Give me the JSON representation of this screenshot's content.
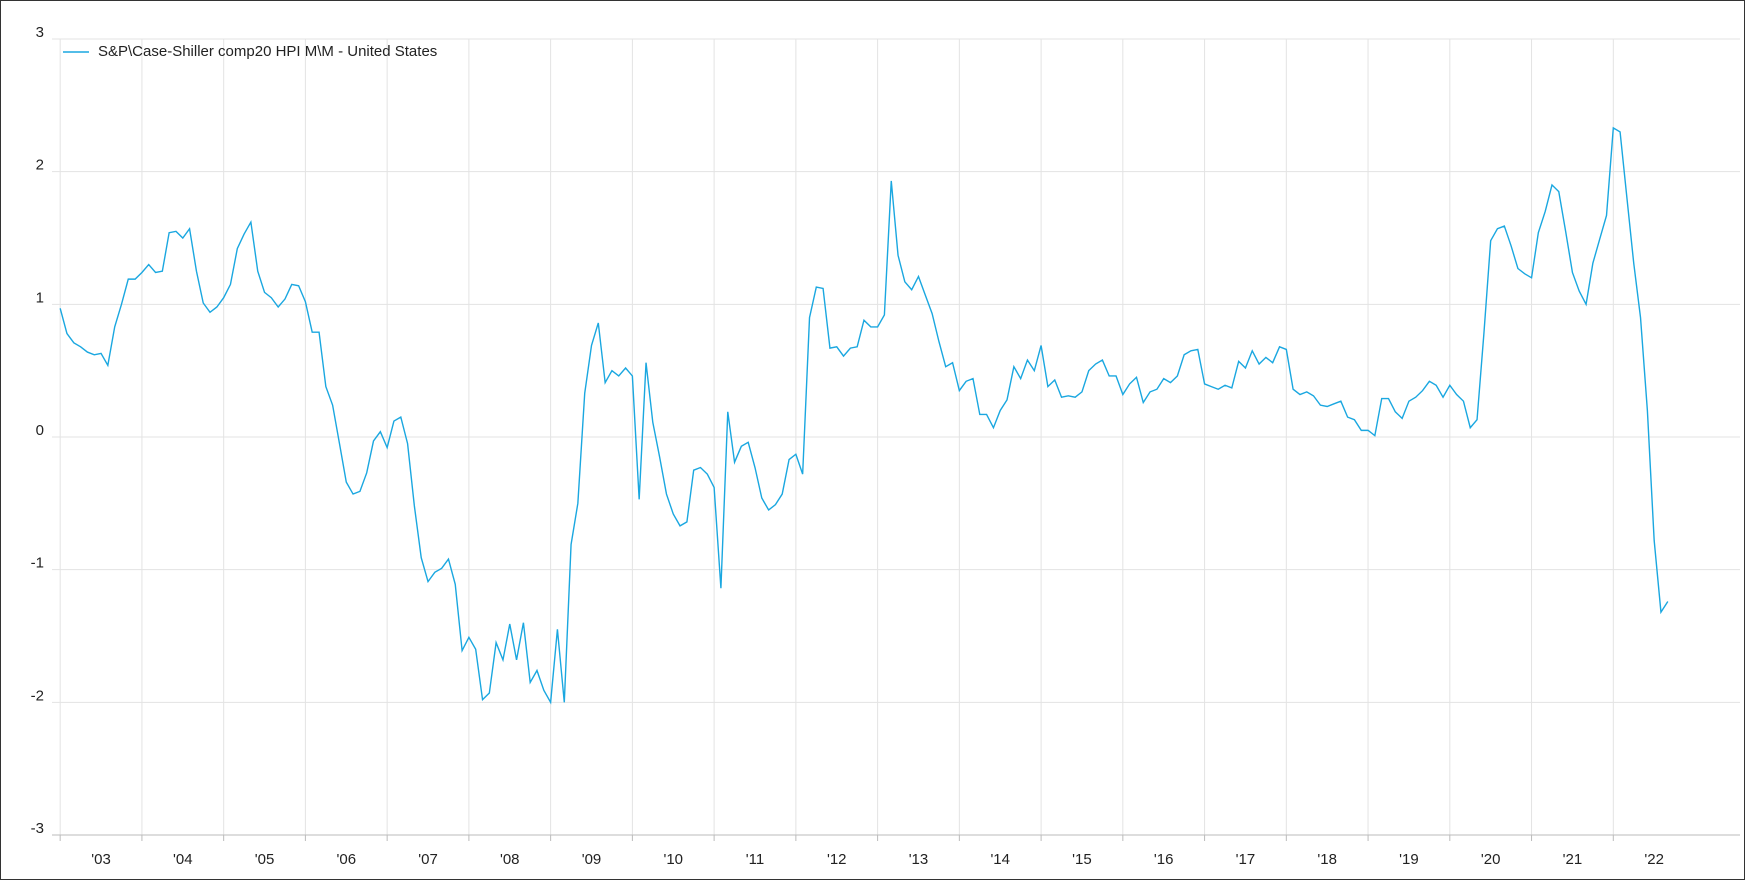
{
  "chart_data": {
    "type": "line",
    "x": [
      2003,
      2003.083,
      2003.167,
      2003.25,
      2003.333,
      2003.417,
      2003.5,
      2003.583,
      2003.667,
      2003.75,
      2003.833,
      2003.917,
      2004,
      2004.083,
      2004.167,
      2004.25,
      2004.333,
      2004.417,
      2004.5,
      2004.583,
      2004.667,
      2004.75,
      2004.833,
      2004.917,
      2005,
      2005.083,
      2005.167,
      2005.25,
      2005.333,
      2005.417,
      2005.5,
      2005.583,
      2005.667,
      2005.75,
      2005.833,
      2005.917,
      2006,
      2006.083,
      2006.167,
      2006.25,
      2006.333,
      2006.417,
      2006.5,
      2006.583,
      2006.667,
      2006.75,
      2006.833,
      2006.917,
      2007,
      2007.083,
      2007.167,
      2007.25,
      2007.333,
      2007.417,
      2007.5,
      2007.583,
      2007.667,
      2007.75,
      2007.833,
      2007.917,
      2008,
      2008.083,
      2008.167,
      2008.25,
      2008.333,
      2008.417,
      2008.5,
      2008.583,
      2008.667,
      2008.75,
      2008.833,
      2008.917,
      2009,
      2009.083,
      2009.167,
      2009.25,
      2009.333,
      2009.417,
      2009.5,
      2009.583,
      2009.667,
      2009.75,
      2009.833,
      2009.917,
      2010,
      2010.083,
      2010.167,
      2010.25,
      2010.333,
      2010.417,
      2010.5,
      2010.583,
      2010.667,
      2010.75,
      2010.833,
      2010.917,
      2011,
      2011.083,
      2011.167,
      2011.25,
      2011.333,
      2011.417,
      2011.5,
      2011.583,
      2011.667,
      2011.75,
      2011.833,
      2011.917,
      2012,
      2012.083,
      2012.167,
      2012.25,
      2012.333,
      2012.417,
      2012.5,
      2012.583,
      2012.667,
      2012.75,
      2012.833,
      2012.917,
      2013,
      2013.083,
      2013.167,
      2013.25,
      2013.333,
      2013.417,
      2013.5,
      2013.583,
      2013.667,
      2013.75,
      2013.833,
      2013.917,
      2014,
      2014.083,
      2014.167,
      2014.25,
      2014.333,
      2014.417,
      2014.5,
      2014.583,
      2014.667,
      2014.75,
      2014.833,
      2014.917,
      2015,
      2015.083,
      2015.167,
      2015.25,
      2015.333,
      2015.417,
      2015.5,
      2015.583,
      2015.667,
      2015.75,
      2015.833,
      2015.917,
      2016,
      2016.083,
      2016.167,
      2016.25,
      2016.333,
      2016.417,
      2016.5,
      2016.583,
      2016.667,
      2016.75,
      2016.833,
      2016.917,
      2017,
      2017.083,
      2017.167,
      2017.25,
      2017.333,
      2017.417,
      2017.5,
      2017.583,
      2017.667,
      2017.75,
      2017.833,
      2017.917,
      2018,
      2018.083,
      2018.167,
      2018.25,
      2018.333,
      2018.417,
      2018.5,
      2018.583,
      2018.667,
      2018.75,
      2018.833,
      2018.917,
      2019,
      2019.083,
      2019.167,
      2019.25,
      2019.333,
      2019.417,
      2019.5,
      2019.583,
      2019.667,
      2019.75,
      2019.833,
      2019.917,
      2020,
      2020.083,
      2020.167,
      2020.25,
      2020.333,
      2020.417,
      2020.5,
      2020.583,
      2020.667,
      2020.75,
      2020.833,
      2020.917,
      2021,
      2021.083,
      2021.167,
      2021.25,
      2021.333,
      2021.417,
      2021.5,
      2021.583,
      2021.667,
      2021.75,
      2021.833,
      2021.917,
      2022,
      2022.083,
      2022.167,
      2022.25,
      2022.333,
      2022.417,
      2022.5,
      2022.583,
      2022.667
    ],
    "series": [
      {
        "name": "S&P\\Case-Shiller comp20 HPI M\\M - United States",
        "color": "#1aa7e0",
        "values": [
          0.97,
          0.78,
          0.71,
          0.68,
          0.64,
          0.62,
          0.63,
          0.54,
          0.83,
          1.0,
          1.19,
          1.19,
          1.24,
          1.3,
          1.24,
          1.25,
          1.54,
          1.55,
          1.5,
          1.57,
          1.25,
          1.01,
          0.94,
          0.98,
          1.05,
          1.15,
          1.42,
          1.53,
          1.62,
          1.25,
          1.09,
          1.05,
          0.98,
          1.04,
          1.15,
          1.14,
          1.02,
          0.79,
          0.79,
          0.38,
          0.24,
          -0.05,
          -0.34,
          -0.43,
          -0.41,
          -0.27,
          -0.03,
          0.04,
          -0.08,
          0.12,
          0.15,
          -0.05,
          -0.52,
          -0.91,
          -1.09,
          -1.02,
          -0.99,
          -0.92,
          -1.11,
          -1.61,
          -1.51,
          -1.6,
          -1.98,
          -1.93,
          -1.55,
          -1.68,
          -1.41,
          -1.68,
          -1.4,
          -1.85,
          -1.76,
          -1.91,
          -2.0,
          -1.45,
          -2.0,
          -0.81,
          -0.5,
          0.33,
          0.69,
          0.86,
          0.41,
          0.5,
          0.46,
          0.52,
          0.46,
          -0.47,
          0.56,
          0.11,
          -0.15,
          -0.43,
          -0.58,
          -0.67,
          -0.64,
          -0.25,
          -0.23,
          -0.28,
          -0.38,
          -1.14,
          0.19,
          -0.19,
          -0.07,
          -0.04,
          -0.23,
          -0.46,
          -0.55,
          -0.51,
          -0.43,
          -0.17,
          -0.13,
          -0.28,
          0.9,
          1.13,
          1.12,
          0.67,
          0.68,
          0.61,
          0.67,
          0.68,
          0.88,
          0.83,
          0.83,
          0.92,
          1.93,
          1.37,
          1.17,
          1.11,
          1.21,
          1.07,
          0.93,
          0.72,
          0.53,
          0.56,
          0.35,
          0.42,
          0.44,
          0.17,
          0.17,
          0.07,
          0.2,
          0.28,
          0.53,
          0.44,
          0.58,
          0.5,
          0.69,
          0.38,
          0.43,
          0.3,
          0.31,
          0.3,
          0.34,
          0.5,
          0.55,
          0.58,
          0.46,
          0.46,
          0.32,
          0.4,
          0.45,
          0.26,
          0.34,
          0.36,
          0.44,
          0.41,
          0.46,
          0.62,
          0.65,
          0.66,
          0.4,
          0.38,
          0.36,
          0.39,
          0.37,
          0.57,
          0.52,
          0.65,
          0.55,
          0.6,
          0.56,
          0.68,
          0.66,
          0.36,
          0.32,
          0.34,
          0.31,
          0.24,
          0.23,
          0.25,
          0.27,
          0.15,
          0.13,
          0.05,
          0.05,
          0.01,
          0.29,
          0.29,
          0.19,
          0.14,
          0.27,
          0.3,
          0.35,
          0.42,
          0.39,
          0.3,
          0.39,
          0.32,
          0.27,
          0.07,
          0.13,
          0.78,
          1.48,
          1.57,
          1.59,
          1.44,
          1.27,
          1.23,
          1.2,
          1.54,
          1.7,
          1.9,
          1.85,
          1.55,
          1.24,
          1.1,
          1.0,
          1.31,
          1.49,
          1.67,
          2.33,
          2.3,
          1.8,
          1.31,
          0.9,
          0.2,
          -0.78,
          -1.32,
          -1.24
        ]
      }
    ],
    "xlim": [
      2002.9,
      2023.55
    ],
    "xticks": [
      {
        "value": 2003,
        "label": "'03"
      },
      {
        "value": 2004,
        "label": "'04"
      },
      {
        "value": 2005,
        "label": "'05"
      },
      {
        "value": 2006,
        "label": "'06"
      },
      {
        "value": 2007,
        "label": "'07"
      },
      {
        "value": 2008,
        "label": "'08"
      },
      {
        "value": 2009,
        "label": "'09"
      },
      {
        "value": 2010,
        "label": "'10"
      },
      {
        "value": 2011,
        "label": "'11"
      },
      {
        "value": 2012,
        "label": "'12"
      },
      {
        "value": 2013,
        "label": "'13"
      },
      {
        "value": 2014,
        "label": "'14"
      },
      {
        "value": 2015,
        "label": "'15"
      },
      {
        "value": 2016,
        "label": "'16"
      },
      {
        "value": 2017,
        "label": "'17"
      },
      {
        "value": 2018,
        "label": "'18"
      },
      {
        "value": 2019,
        "label": "'19"
      },
      {
        "value": 2020,
        "label": "'20"
      },
      {
        "value": 2021,
        "label": "'21"
      },
      {
        "value": 2022,
        "label": "'22"
      }
    ],
    "ylim": [
      -3,
      3
    ],
    "yticks": [
      -3,
      -2,
      -1,
      0,
      1,
      2,
      3
    ],
    "grid": true,
    "legend": "top-left"
  }
}
